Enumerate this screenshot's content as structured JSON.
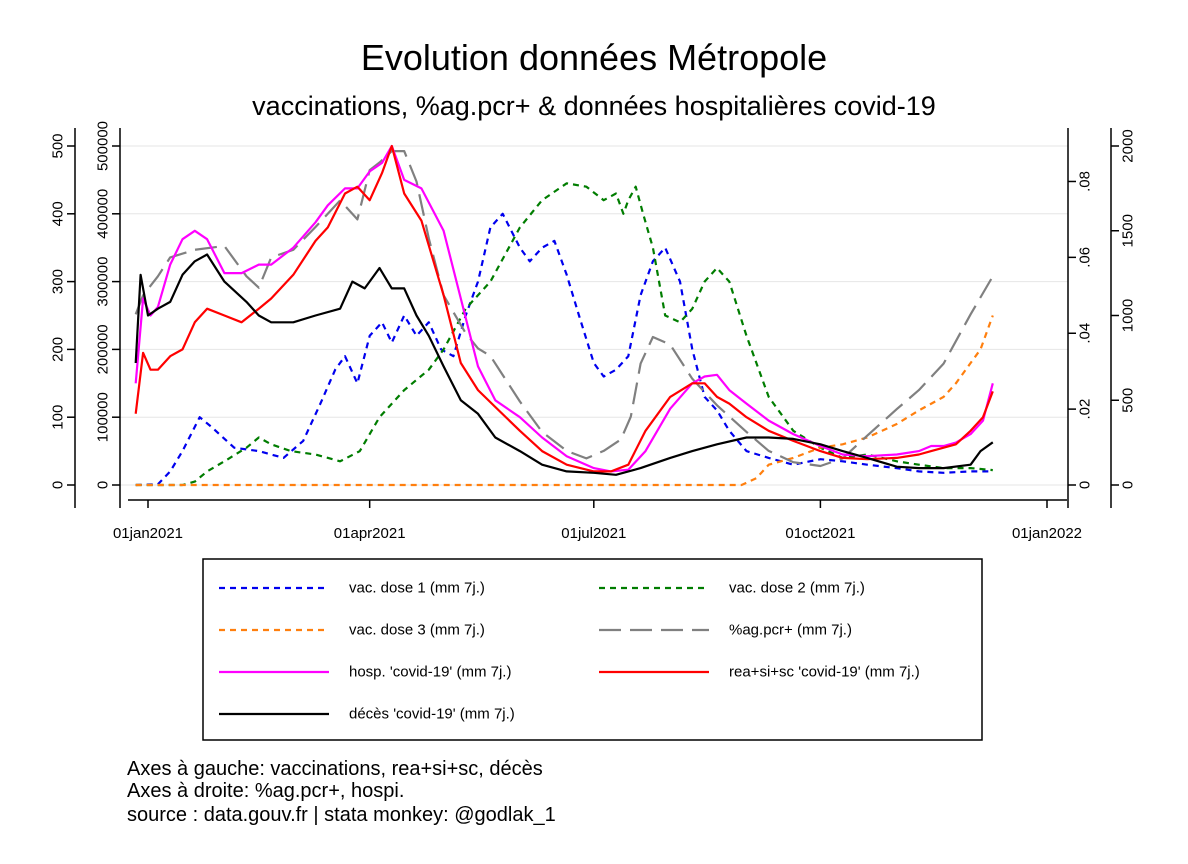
{
  "chart_data": {
    "type": "line",
    "title": "Evolution données Métropole",
    "subtitle": "vaccinations, %ag.pcr+ & données hospitalières covid-19",
    "x_ticks": [
      "01jan2021",
      "01apr2021",
      "01jul2021",
      "01oct2021",
      "01jan2022"
    ],
    "xlim": [
      "2020-12-24",
      "2022-01-01"
    ],
    "grid": true,
    "legend_position": "bottom",
    "axes": {
      "left_outer": {
        "ticks": [
          "0",
          "100",
          "200",
          "300",
          "400",
          "500"
        ],
        "ylim": [
          0,
          500
        ]
      },
      "left_inner": {
        "ticks": [
          "0",
          "100000",
          "200000",
          "300000",
          "400000",
          "500000"
        ],
        "ylim": [
          0,
          500000
        ]
      },
      "right_inner": {
        "ticks": [
          "0",
          ".02",
          ".04",
          ".06",
          ".08"
        ],
        "ylim": [
          0,
          0.08935
        ]
      },
      "right_outer": {
        "ticks": [
          "0",
          "500",
          "1000",
          "1500",
          "2000"
        ],
        "ylim": [
          0,
          2000
        ]
      }
    },
    "series": [
      {
        "name": "vac. dose 1 (mm 7j.)",
        "axis": "left_inner",
        "color": "#0000ee",
        "dash": "short",
        "x": [
          "2020-12-27",
          "2021-01-05",
          "2021-01-10",
          "2021-01-15",
          "2021-01-22",
          "2021-01-27",
          "2021-02-05",
          "2021-02-15",
          "2021-02-25",
          "2021-03-05",
          "2021-03-12",
          "2021-03-18",
          "2021-03-22",
          "2021-03-27",
          "2021-04-01",
          "2021-04-06",
          "2021-04-10",
          "2021-04-15",
          "2021-04-20",
          "2021-04-25",
          "2021-04-30",
          "2021-05-05",
          "2021-05-10",
          "2021-05-15",
          "2021-05-20",
          "2021-05-25",
          "2021-06-01",
          "2021-06-05",
          "2021-06-10",
          "2021-06-15",
          "2021-06-20",
          "2021-06-25",
          "2021-07-01",
          "2021-07-05",
          "2021-07-10",
          "2021-07-15",
          "2021-07-20",
          "2021-07-25",
          "2021-07-30",
          "2021-08-05",
          "2021-08-10",
          "2021-08-15",
          "2021-08-20",
          "2021-08-25",
          "2021-09-01",
          "2021-09-10",
          "2021-09-20",
          "2021-10-01",
          "2021-10-10",
          "2021-10-20",
          "2021-11-01",
          "2021-11-10",
          "2021-11-20",
          "2021-12-01",
          "2021-12-10"
        ],
        "values": [
          0,
          1000,
          20000,
          50000,
          100000,
          85000,
          55000,
          50000,
          40000,
          65000,
          120000,
          170000,
          190000,
          150000,
          220000,
          240000,
          210000,
          250000,
          220000,
          240000,
          200000,
          190000,
          250000,
          300000,
          380000,
          400000,
          350000,
          330000,
          350000,
          360000,
          310000,
          250000,
          180000,
          160000,
          170000,
          190000,
          280000,
          330000,
          350000,
          300000,
          200000,
          130000,
          110000,
          80000,
          50000,
          40000,
          30000,
          38000,
          35000,
          30000,
          25000,
          20000,
          18000,
          20000,
          20000
        ]
      },
      {
        "name": "vac. dose 2 (mm 7j.)",
        "axis": "left_inner",
        "color": "#007d00",
        "dash": "short",
        "x": [
          "2020-12-27",
          "2021-01-15",
          "2021-01-20",
          "2021-01-25",
          "2021-02-01",
          "2021-02-10",
          "2021-02-15",
          "2021-02-20",
          "2021-02-28",
          "2021-03-10",
          "2021-03-20",
          "2021-03-28",
          "2021-04-05",
          "2021-04-15",
          "2021-04-25",
          "2021-05-01",
          "2021-05-10",
          "2021-05-20",
          "2021-06-01",
          "2021-06-10",
          "2021-06-20",
          "2021-06-28",
          "2021-07-05",
          "2021-07-10",
          "2021-07-13",
          "2021-07-15",
          "2021-07-18",
          "2021-07-21",
          "2021-07-25",
          "2021-07-30",
          "2021-08-05",
          "2021-08-10",
          "2021-08-15",
          "2021-08-20",
          "2021-08-25",
          "2021-09-01",
          "2021-09-10",
          "2021-09-20",
          "2021-10-01",
          "2021-10-10",
          "2021-10-20",
          "2021-11-01",
          "2021-11-10",
          "2021-11-20",
          "2021-12-01",
          "2021-12-10"
        ],
        "values": [
          0,
          0,
          5000,
          20000,
          35000,
          55000,
          70000,
          60000,
          50000,
          45000,
          35000,
          50000,
          100000,
          140000,
          170000,
          200000,
          260000,
          300000,
          380000,
          420000,
          445000,
          440000,
          420000,
          430000,
          400000,
          420000,
          440000,
          400000,
          350000,
          250000,
          240000,
          260000,
          300000,
          320000,
          300000,
          220000,
          130000,
          80000,
          55000,
          40000,
          45000,
          35000,
          30000,
          25000,
          25000,
          22000
        ]
      },
      {
        "name": "vac. dose 3 (mm 7j.)",
        "axis": "left_inner",
        "color": "#ff7f0e",
        "dash": "short",
        "x": [
          "2020-12-27",
          "2021-08-30",
          "2021-09-05",
          "2021-09-10",
          "2021-09-20",
          "2021-10-01",
          "2021-10-10",
          "2021-10-20",
          "2021-11-01",
          "2021-11-10",
          "2021-11-20",
          "2021-11-25",
          "2021-12-01",
          "2021-12-05",
          "2021-12-10"
        ],
        "values": [
          0,
          0,
          10000,
          30000,
          40000,
          55000,
          60000,
          70000,
          90000,
          110000,
          130000,
          150000,
          180000,
          200000,
          250000
        ]
      },
      {
        "name": "%ag.pcr+ (mm 7j.)",
        "axis": "right_inner",
        "color": "#808080",
        "dash": "long",
        "x": [
          "2020-12-27",
          "2020-12-30",
          "2021-01-05",
          "2021-01-10",
          "2021-01-20",
          "2021-02-01",
          "2021-02-10",
          "2021-02-15",
          "2021-02-20",
          "2021-03-01",
          "2021-03-10",
          "2021-03-20",
          "2021-03-27",
          "2021-04-01",
          "2021-04-05",
          "2021-04-10",
          "2021-04-15",
          "2021-04-20",
          "2021-04-25",
          "2021-05-01",
          "2021-05-10",
          "2021-05-15",
          "2021-05-20",
          "2021-05-25",
          "2021-06-01",
          "2021-06-10",
          "2021-06-20",
          "2021-06-28",
          "2021-07-05",
          "2021-07-12",
          "2021-07-16",
          "2021-07-20",
          "2021-07-25",
          "2021-08-01",
          "2021-08-10",
          "2021-08-20",
          "2021-09-01",
          "2021-09-10",
          "2021-09-20",
          "2021-10-01",
          "2021-10-10",
          "2021-10-20",
          "2021-11-01",
          "2021-11-10",
          "2021-11-20",
          "2021-12-01",
          "2021-12-10"
        ],
        "values": [
          0.045,
          0.05,
          0.055,
          0.06,
          0.062,
          0.063,
          0.055,
          0.052,
          0.06,
          0.062,
          0.068,
          0.075,
          0.07,
          0.083,
          0.085,
          0.088,
          0.088,
          0.08,
          0.065,
          0.05,
          0.04,
          0.036,
          0.034,
          0.029,
          0.022,
          0.014,
          0.009,
          0.007,
          0.009,
          0.012,
          0.018,
          0.032,
          0.039,
          0.037,
          0.028,
          0.021,
          0.014,
          0.009,
          0.006,
          0.005,
          0.007,
          0.013,
          0.02,
          0.025,
          0.032,
          0.045,
          0.055
        ]
      },
      {
        "name": "hosp. 'covid-19' (mm 7j.)",
        "axis": "right_outer",
        "color": "#ff00ff",
        "dash": "solid",
        "x": [
          "2020-12-27",
          "2020-12-30",
          "2021-01-02",
          "2021-01-05",
          "2021-01-10",
          "2021-01-15",
          "2021-01-20",
          "2021-01-25",
          "2021-02-01",
          "2021-02-08",
          "2021-02-15",
          "2021-02-20",
          "2021-03-01",
          "2021-03-10",
          "2021-03-15",
          "2021-03-22",
          "2021-03-27",
          "2021-04-01",
          "2021-04-06",
          "2021-04-10",
          "2021-04-15",
          "2021-04-22",
          "2021-05-01",
          "2021-05-08",
          "2021-05-15",
          "2021-05-22",
          "2021-06-01",
          "2021-06-10",
          "2021-06-20",
          "2021-07-01",
          "2021-07-08",
          "2021-07-15",
          "2021-07-22",
          "2021-08-01",
          "2021-08-10",
          "2021-08-15",
          "2021-08-20",
          "2021-08-25",
          "2021-09-01",
          "2021-09-10",
          "2021-09-20",
          "2021-10-01",
          "2021-10-10",
          "2021-10-20",
          "2021-11-01",
          "2021-11-10",
          "2021-11-15",
          "2021-11-20",
          "2021-11-25",
          "2021-12-01",
          "2021-12-06",
          "2021-12-10"
        ],
        "values": [
          600,
          1100,
          1000,
          1050,
          1300,
          1450,
          1500,
          1450,
          1250,
          1250,
          1300,
          1300,
          1400,
          1550,
          1650,
          1750,
          1750,
          1850,
          1900,
          2000,
          1800,
          1750,
          1500,
          1100,
          700,
          500,
          400,
          280,
          170,
          100,
          80,
          90,
          200,
          450,
          600,
          640,
          650,
          560,
          480,
          380,
          300,
          230,
          180,
          170,
          180,
          200,
          230,
          230,
          250,
          300,
          380,
          600
        ]
      },
      {
        "name": "rea+si+sc 'covid-19' (mm 7j.)",
        "axis": "left_outer",
        "color": "#ff0000",
        "dash": "solid",
        "x": [
          "2020-12-27",
          "2020-12-30",
          "2021-01-02",
          "2021-01-05",
          "2021-01-10",
          "2021-01-15",
          "2021-01-20",
          "2021-01-25",
          "2021-02-01",
          "2021-02-08",
          "2021-02-15",
          "2021-02-20",
          "2021-03-01",
          "2021-03-10",
          "2021-03-15",
          "2021-03-22",
          "2021-03-27",
          "2021-04-01",
          "2021-04-06",
          "2021-04-10",
          "2021-04-15",
          "2021-04-22",
          "2021-05-01",
          "2021-05-08",
          "2021-05-15",
          "2021-05-22",
          "2021-06-01",
          "2021-06-10",
          "2021-06-20",
          "2021-07-01",
          "2021-07-08",
          "2021-07-15",
          "2021-07-22",
          "2021-08-01",
          "2021-08-10",
          "2021-08-15",
          "2021-08-20",
          "2021-08-25",
          "2021-09-01",
          "2021-09-10",
          "2021-09-20",
          "2021-10-01",
          "2021-10-10",
          "2021-10-20",
          "2021-11-01",
          "2021-11-10",
          "2021-11-15",
          "2021-11-20",
          "2021-11-25",
          "2021-12-01",
          "2021-12-06",
          "2021-12-10"
        ],
        "values": [
          105,
          195,
          170,
          170,
          190,
          200,
          240,
          260,
          250,
          240,
          260,
          275,
          310,
          360,
          380,
          430,
          440,
          420,
          460,
          500,
          430,
          390,
          280,
          180,
          140,
          115,
          80,
          50,
          30,
          20,
          20,
          30,
          80,
          130,
          150,
          150,
          130,
          120,
          100,
          80,
          65,
          50,
          40,
          38,
          40,
          45,
          50,
          55,
          60,
          80,
          100,
          138
        ]
      },
      {
        "name": "décès 'covid-19' (mm 7j.)",
        "axis": "left_outer",
        "color": "#000000",
        "dash": "solid",
        "x": [
          "2020-12-27",
          "2020-12-29",
          "2021-01-01",
          "2021-01-05",
          "2021-01-10",
          "2021-01-15",
          "2021-01-20",
          "2021-01-25",
          "2021-02-01",
          "2021-02-10",
          "2021-02-15",
          "2021-02-20",
          "2021-03-01",
          "2021-03-10",
          "2021-03-20",
          "2021-03-25",
          "2021-03-30",
          "2021-04-05",
          "2021-04-10",
          "2021-04-15",
          "2021-04-20",
          "2021-04-25",
          "2021-05-01",
          "2021-05-08",
          "2021-05-15",
          "2021-05-22",
          "2021-06-01",
          "2021-06-10",
          "2021-06-20",
          "2021-07-01",
          "2021-07-10",
          "2021-07-20",
          "2021-08-01",
          "2021-08-10",
          "2021-08-20",
          "2021-09-01",
          "2021-09-10",
          "2021-09-20",
          "2021-10-01",
          "2021-10-10",
          "2021-10-20",
          "2021-11-01",
          "2021-11-10",
          "2021-11-20",
          "2021-12-01",
          "2021-12-05",
          "2021-12-10"
        ],
        "values": [
          180,
          310,
          250,
          260,
          270,
          310,
          330,
          340,
          300,
          270,
          250,
          240,
          240,
          250,
          260,
          300,
          290,
          320,
          290,
          290,
          250,
          220,
          175,
          125,
          105,
          70,
          50,
          30,
          20,
          18,
          15,
          25,
          40,
          50,
          60,
          70,
          70,
          68,
          60,
          50,
          40,
          27,
          25,
          25,
          30,
          50,
          63
        ]
      }
    ],
    "notes": [
      "Axes à gauche: vaccinations, rea+si+sc, décès",
      "Axes à droite: %ag.pcr+, hospi.",
      "source : data.gouv.fr | stata monkey: @godlak_1"
    ]
  }
}
